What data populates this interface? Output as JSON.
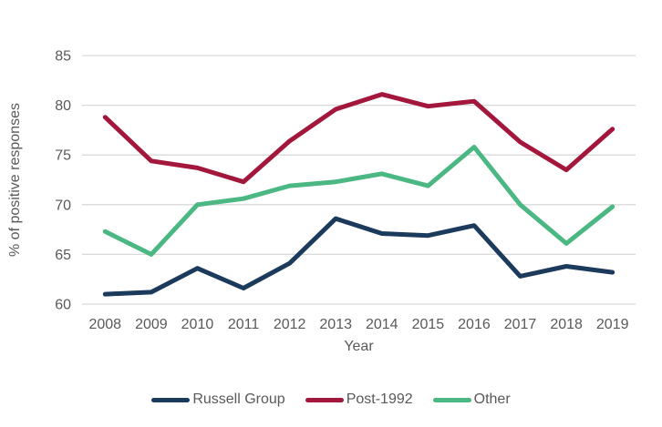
{
  "chart_data": {
    "type": "line",
    "title": "",
    "xlabel": "Year",
    "ylabel": "% of positive responses",
    "categories": [
      "2008",
      "2009",
      "2010",
      "2011",
      "2012",
      "2013",
      "2014",
      "2015",
      "2016",
      "2017",
      "2018",
      "2019"
    ],
    "ylim": [
      60,
      85
    ],
    "ytick_step": 5,
    "yticks": [
      60,
      65,
      70,
      75,
      80,
      85
    ],
    "grid": true,
    "legend_position": "bottom",
    "series": [
      {
        "name": "Russell Group",
        "color": "#1B3A5C",
        "values": [
          61.0,
          61.2,
          63.6,
          61.6,
          64.1,
          68.6,
          67.1,
          66.9,
          67.9,
          62.8,
          63.8,
          63.2
        ]
      },
      {
        "name": "Post-1992",
        "color": "#A3173C",
        "values": [
          78.8,
          74.4,
          73.7,
          72.3,
          76.4,
          79.6,
          81.1,
          79.9,
          80.4,
          76.3,
          73.5,
          77.6
        ]
      },
      {
        "name": "Other",
        "color": "#4BB883",
        "values": [
          67.3,
          65.0,
          70.0,
          70.6,
          71.9,
          72.3,
          73.1,
          71.9,
          75.8,
          70.0,
          66.1,
          69.8
        ]
      }
    ],
    "colors": {
      "grid": "#D9D9D9",
      "text": "#595959",
      "background": "#FFFFFF"
    }
  }
}
